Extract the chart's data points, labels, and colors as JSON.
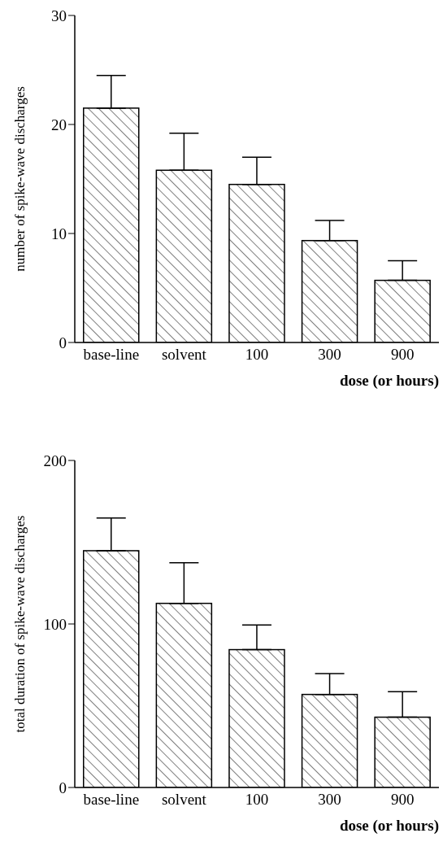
{
  "chart_data": [
    {
      "type": "bar",
      "categories": [
        "base-line",
        "solvent",
        "100",
        "300",
        "900"
      ],
      "values": [
        21.5,
        15.8,
        14.5,
        9.35,
        5.7
      ],
      "color": "#000000",
      "errors": [
        [
          21.5,
          24.5
        ],
        [
          15.8,
          19.2
        ],
        [
          14.5,
          17.0
        ],
        [
          9.35,
          11.2
        ],
        [
          5.7,
          7.5
        ]
      ],
      "ylabel": "number of spike-wave discharges",
      "xlabel": "dose (or hours)",
      "ylim": [
        0,
        30
      ],
      "yticks": [
        0,
        10,
        20,
        30
      ],
      "grid": false,
      "legend": false
    },
    {
      "type": "bar",
      "categories": [
        "base-line",
        "solvent",
        "100",
        "300",
        "900"
      ],
      "values": [
        144.8,
        112.6,
        84.3,
        56.9,
        43.0
      ],
      "color": "#000000",
      "errors": [
        [
          144.8,
          164.8
        ],
        [
          112.6,
          137.4
        ],
        [
          84.3,
          99.4
        ],
        [
          56.9,
          69.7
        ],
        [
          43.0,
          58.6
        ]
      ],
      "ylabel": "total duration of spike-wave discharges",
      "xlabel": "dose (or hours)",
      "ylim": [
        0,
        200
      ],
      "yticks": [
        0,
        100,
        200
      ],
      "grid": false,
      "legend": false
    }
  ]
}
